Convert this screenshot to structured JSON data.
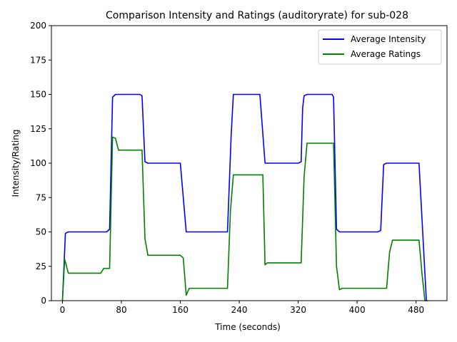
{
  "chart_data": {
    "type": "line",
    "title": "Comparison Intensity and Ratings (auditoryrate) for sub-028",
    "xlabel": "Time (seconds)",
    "ylabel": "Intensity/Rating",
    "xlim": [
      -15,
      522
    ],
    "ylim": [
      0,
      200
    ],
    "xticks": [
      0,
      80,
      160,
      240,
      320,
      400,
      480
    ],
    "yticks": [
      0,
      25,
      50,
      75,
      100,
      125,
      150,
      175,
      200
    ],
    "grid": false,
    "legend_position": "top-right",
    "series": [
      {
        "name": "Average Intensity",
        "color": "#0000ff",
        "points": [
          [
            0,
            0
          ],
          [
            4,
            49
          ],
          [
            8,
            50
          ],
          [
            60,
            50
          ],
          [
            64,
            52
          ],
          [
            68,
            148
          ],
          [
            72,
            150
          ],
          [
            105,
            150
          ],
          [
            108,
            149
          ],
          [
            112,
            101
          ],
          [
            116,
            100
          ],
          [
            160,
            100
          ],
          [
            168,
            50
          ],
          [
            224,
            50
          ],
          [
            229,
            120
          ],
          [
            232,
            150
          ],
          [
            268,
            150
          ],
          [
            275,
            100
          ],
          [
            320,
            100
          ],
          [
            324,
            101
          ],
          [
            326,
            140
          ],
          [
            328,
            149
          ],
          [
            332,
            150
          ],
          [
            366,
            150
          ],
          [
            368,
            148
          ],
          [
            372,
            52
          ],
          [
            376,
            50
          ],
          [
            428,
            50
          ],
          [
            432,
            51
          ],
          [
            436,
            99
          ],
          [
            440,
            100
          ],
          [
            484,
            100
          ],
          [
            491,
            30
          ],
          [
            494,
            0
          ]
        ]
      },
      {
        "name": "Average Ratings",
        "color": "#008000",
        "points": [
          [
            0,
            0
          ],
          [
            3,
            30
          ],
          [
            8,
            20
          ],
          [
            52,
            20
          ],
          [
            56,
            23.5
          ],
          [
            64,
            23.5
          ],
          [
            68,
            119
          ],
          [
            72,
            118
          ],
          [
            76,
            109.5
          ],
          [
            108,
            109.5
          ],
          [
            112,
            45
          ],
          [
            116,
            33
          ],
          [
            160,
            33
          ],
          [
            164,
            31
          ],
          [
            168,
            4
          ],
          [
            172,
            9
          ],
          [
            224,
            9
          ],
          [
            228,
            65
          ],
          [
            232,
            91.5
          ],
          [
            272,
            91.5
          ],
          [
            275,
            26
          ],
          [
            278,
            27.5
          ],
          [
            324,
            27.5
          ],
          [
            328,
            90
          ],
          [
            332,
            114.5
          ],
          [
            368,
            114.5
          ],
          [
            372,
            25
          ],
          [
            376,
            8
          ],
          [
            380,
            9
          ],
          [
            440,
            9
          ],
          [
            444,
            35
          ],
          [
            448,
            44
          ],
          [
            484,
            44
          ],
          [
            488,
            20
          ],
          [
            492,
            0
          ],
          [
            496,
            0
          ]
        ]
      }
    ]
  }
}
